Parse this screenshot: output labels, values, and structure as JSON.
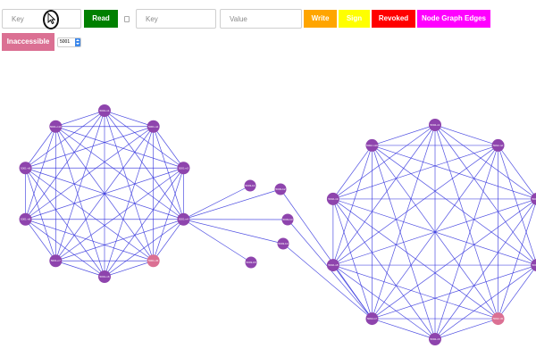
{
  "toolbar": {
    "read_key_placeholder": "Key",
    "read_button": "Read",
    "write_key_placeholder": "Key",
    "value_placeholder": "Value",
    "write_button": "Write",
    "sign_button": "Sign",
    "revoked_button": "Revoked",
    "node_graph_edges_button": "Node Graph Edges",
    "inaccessible_button": "Inaccessible",
    "node_select_value": "5001"
  },
  "colors": {
    "read": "#008000",
    "write": "#ffa500",
    "sign": "#ffff00",
    "revoked": "#ff0000",
    "node_graph_edges": "#ff00ff",
    "inaccessible": "#db7093",
    "node_default": "#8e44ad",
    "node_inaccessible": "#db7093",
    "edge": "#3333dd"
  },
  "graph": {
    "cluster_left": {
      "nodes": [
        {
          "label": "5001-n1",
          "state": "normal"
        },
        {
          "label": "5001-n2",
          "state": "normal"
        },
        {
          "label": "5001-n3",
          "state": "normal"
        },
        {
          "label": "5001-n4",
          "state": "normal"
        },
        {
          "label": "5001-n5",
          "state": "inaccessible"
        },
        {
          "label": "5001-n6",
          "state": "normal"
        },
        {
          "label": "5001-n7",
          "state": "normal"
        },
        {
          "label": "5001-n8",
          "state": "normal"
        },
        {
          "label": "5001-n9",
          "state": "normal"
        },
        {
          "label": "5001-n10",
          "state": "normal"
        }
      ]
    },
    "cluster_right": {
      "nodes": [
        {
          "label": "5002-n1",
          "state": "normal"
        },
        {
          "label": "5002-n2",
          "state": "normal"
        },
        {
          "label": "5002-n3",
          "state": "normal"
        },
        {
          "label": "5002-n4",
          "state": "normal"
        },
        {
          "label": "5002-n5",
          "state": "inaccessible"
        },
        {
          "label": "5002-n6",
          "state": "normal"
        },
        {
          "label": "5002-n7",
          "state": "normal"
        },
        {
          "label": "5002-n8",
          "state": "normal"
        },
        {
          "label": "5002-n9",
          "state": "normal"
        },
        {
          "label": "5002-n10",
          "state": "normal"
        }
      ]
    },
    "bridge_nodes": [
      {
        "label": "5003-b1",
        "state": "normal"
      },
      {
        "label": "5003-b2",
        "state": "normal"
      },
      {
        "label": "5003-b3",
        "state": "normal"
      },
      {
        "label": "5003-b4",
        "state": "normal"
      },
      {
        "label": "5003-b5",
        "state": "normal"
      }
    ]
  }
}
